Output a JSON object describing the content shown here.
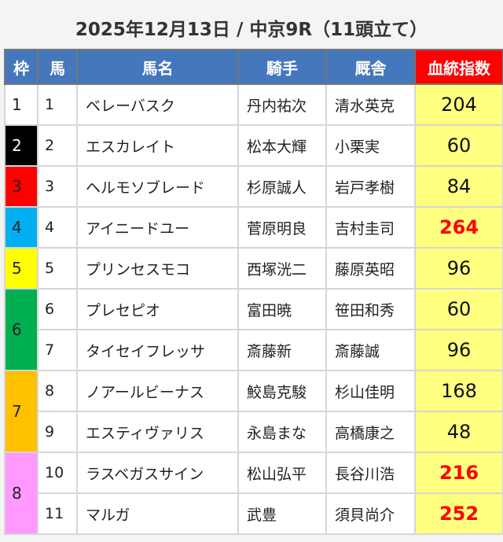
{
  "title": "2025年12月13日 / 中京9R（11頭立て）",
  "headers": {
    "waku": "枠",
    "umaban": "馬",
    "name": "馬名",
    "jockey": "騎手",
    "trainer": "厩舎",
    "index": "血統指数"
  },
  "frame_colors": {
    "1": "#ffffff",
    "2": "#000000",
    "3": "#ff0000",
    "4": "#00b0f0",
    "5": "#ffff00",
    "6": "#00b050",
    "7": "#ffc000",
    "8": "#ff99ff"
  },
  "frame_text_colors": {
    "1": "#222222",
    "2": "#ffffff",
    "3": "#222222",
    "4": "#222222",
    "5": "#222222",
    "6": "#222222",
    "7": "#222222",
    "8": "#222222"
  },
  "index_bg": "#ffff80",
  "highlight_color": "#ff0000",
  "rows": [
    {
      "waku": "1",
      "umaban": "1",
      "name": "ベレーバスク",
      "jockey": "丹内祐次",
      "trainer": "清水英克",
      "index": "204",
      "highlight": false
    },
    {
      "waku": "2",
      "umaban": "2",
      "name": "エスカレイト",
      "jockey": "松本大輝",
      "trainer": "小栗実",
      "index": "60",
      "highlight": false
    },
    {
      "waku": "3",
      "umaban": "3",
      "name": "ヘルモソブレード",
      "jockey": "杉原誠人",
      "trainer": "岩戸孝樹",
      "index": "84",
      "highlight": false
    },
    {
      "waku": "4",
      "umaban": "4",
      "name": "アイニードユー",
      "jockey": "菅原明良",
      "trainer": "吉村圭司",
      "index": "264",
      "highlight": true
    },
    {
      "waku": "5",
      "umaban": "5",
      "name": "プリンセスモコ",
      "jockey": "西塚洸二",
      "trainer": "藤原英昭",
      "index": "96",
      "highlight": false
    },
    {
      "waku": "6",
      "umaban": "6",
      "name": "プレセピオ",
      "jockey": "富田暁",
      "trainer": "笹田和秀",
      "index": "60",
      "highlight": false
    },
    {
      "waku": "6",
      "umaban": "7",
      "name": "タイセイフレッサ",
      "jockey": "斎藤新",
      "trainer": "斎藤誠",
      "index": "96",
      "highlight": false
    },
    {
      "waku": "7",
      "umaban": "8",
      "name": "ノアールビーナス",
      "jockey": "鮫島克駿",
      "trainer": "杉山佳明",
      "index": "168",
      "highlight": false
    },
    {
      "waku": "7",
      "umaban": "9",
      "name": "エスティヴァリス",
      "jockey": "永島まな",
      "trainer": "高橋康之",
      "index": "48",
      "highlight": false
    },
    {
      "waku": "8",
      "umaban": "10",
      "name": "ラスベガスサイン",
      "jockey": "松山弘平",
      "trainer": "長谷川浩",
      "index": "216",
      "highlight": true
    },
    {
      "waku": "8",
      "umaban": "11",
      "name": "マルガ",
      "jockey": "武豊",
      "trainer": "須貝尚介",
      "index": "252",
      "highlight": true
    }
  ]
}
